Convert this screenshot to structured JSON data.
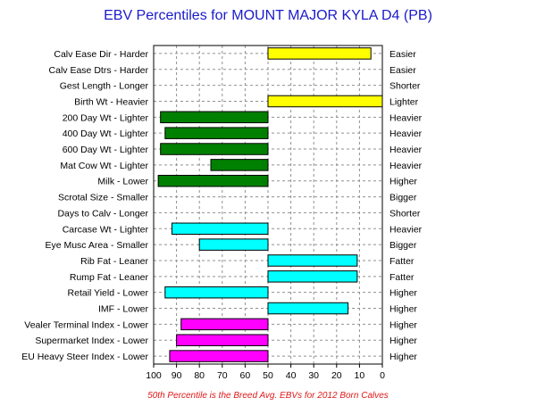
{
  "chart_data": {
    "type": "bar",
    "orientation": "horizontal",
    "title": "EBV Percentiles for MOUNT MAJOR KYLA D4 (PB)",
    "footnote": "50th Percentile is the Breed Avg. EBVs for 2012 Born Calves",
    "xlim": [
      100,
      0
    ],
    "baseline": 50,
    "x_ticks": [
      100,
      90,
      80,
      70,
      60,
      50,
      40,
      30,
      20,
      10,
      0
    ],
    "grid": true,
    "traits": [
      {
        "label": "Calv Ease Dir - Harder",
        "right_label": "Easier",
        "value": 5,
        "color": "#ffff00"
      },
      {
        "label": "Calv Ease Dtrs - Harder",
        "right_label": "Easier",
        "value": null,
        "color": "#ffff00"
      },
      {
        "label": "Gest Length - Longer",
        "right_label": "Shorter",
        "value": null,
        "color": "#ffff00"
      },
      {
        "label": "Birth Wt - Heavier",
        "right_label": "Lighter",
        "value": 0,
        "color": "#ffff00"
      },
      {
        "label": "200 Day Wt - Lighter",
        "right_label": "Heavier",
        "value": 97,
        "color": "#008000"
      },
      {
        "label": "400 Day Wt - Lighter",
        "right_label": "Heavier",
        "value": 95,
        "color": "#008000"
      },
      {
        "label": "600 Day Wt - Lighter",
        "right_label": "Heavier",
        "value": 97,
        "color": "#008000"
      },
      {
        "label": "Mat Cow Wt - Lighter",
        "right_label": "Heavier",
        "value": 75,
        "color": "#008000"
      },
      {
        "label": "Milk - Lower",
        "right_label": "Higher",
        "value": 98,
        "color": "#008000"
      },
      {
        "label": "Scrotal Size - Smaller",
        "right_label": "Bigger",
        "value": null,
        "color": "#008000"
      },
      {
        "label": "Days to Calv - Longer",
        "right_label": "Shorter",
        "value": null,
        "color": "#008000"
      },
      {
        "label": "Carcase Wt - Lighter",
        "right_label": "Heavier",
        "value": 92,
        "color": "#00ffff"
      },
      {
        "label": "Eye Musc Area - Smaller",
        "right_label": "Bigger",
        "value": 80,
        "color": "#00ffff"
      },
      {
        "label": "Rib Fat - Leaner",
        "right_label": "Fatter",
        "value": 11,
        "color": "#00ffff"
      },
      {
        "label": "Rump Fat - Leaner",
        "right_label": "Fatter",
        "value": 11,
        "color": "#00ffff"
      },
      {
        "label": "Retail Yield - Lower",
        "right_label": "Higher",
        "value": 95,
        "color": "#00ffff"
      },
      {
        "label": "IMF - Lower",
        "right_label": "Higher",
        "value": 15,
        "color": "#00ffff"
      },
      {
        "label": "Vealer Terminal Index - Lower",
        "right_label": "Higher",
        "value": 88,
        "color": "#ff00ff"
      },
      {
        "label": "Supermarket Index - Lower",
        "right_label": "Higher",
        "value": 90,
        "color": "#ff00ff"
      },
      {
        "label": "EU Heavy Steer Index - Lower",
        "right_label": "Higher",
        "value": 93,
        "color": "#ff00ff"
      }
    ]
  }
}
